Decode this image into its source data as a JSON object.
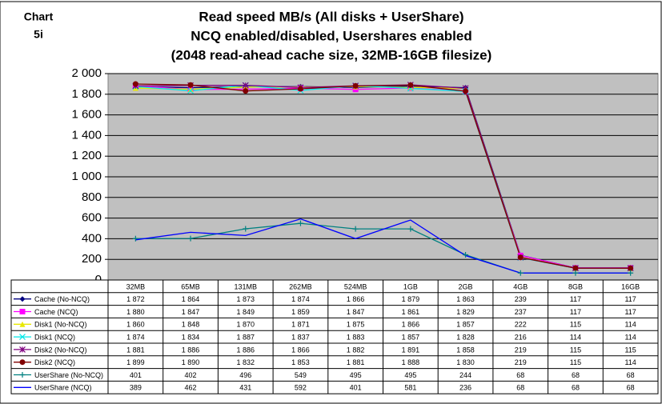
{
  "chart_data": {
    "type": "line",
    "chart_label": [
      "Chart",
      "5i"
    ],
    "title": [
      "Read speed MB/s  (All disks + UserShare)",
      "NCQ enabled/disabled, Usershares enabled",
      "(2048 read-ahead cache size, 32MB-16GB filesize)"
    ],
    "categories": [
      "32MB",
      "65MB",
      "131MB",
      "262MB",
      "524MB",
      "1GB",
      "2GB",
      "4GB",
      "8GB",
      "16GB"
    ],
    "ylim": [
      0,
      2000
    ],
    "yticks": [
      0,
      200,
      400,
      600,
      800,
      {
        "value": 1000,
        "label": "1 000"
      },
      {
        "value": 1200,
        "label": "1 200"
      },
      {
        "value": 1400,
        "label": "1 400"
      },
      {
        "value": 1600,
        "label": "1 600"
      },
      {
        "value": 1800,
        "label": "1 800"
      },
      {
        "value": 2000,
        "label": "2 000"
      }
    ],
    "grid": true,
    "plot_background": "#c0c0c0",
    "series": [
      {
        "name": "Cache (No-NCQ)",
        "color": "#000080",
        "marker": "diamond",
        "values": [
          1872,
          1864,
          1873,
          1874,
          1866,
          1879,
          1863,
          239,
          117,
          117
        ],
        "value_labels": [
          "1 872",
          "1 864",
          "1 873",
          "1 874",
          "1 866",
          "1 879",
          "1 863",
          "239",
          "117",
          "117"
        ]
      },
      {
        "name": "Cache (NCQ)",
        "color": "#ff00ff",
        "marker": "square",
        "values": [
          1880,
          1847,
          1849,
          1859,
          1847,
          1861,
          1829,
          237,
          117,
          117
        ],
        "value_labels": [
          "1 880",
          "1 847",
          "1 849",
          "1 859",
          "1 847",
          "1 861",
          "1 829",
          "237",
          "117",
          "117"
        ]
      },
      {
        "name": "Disk1 (No-NCQ)",
        "color": "#e8e800",
        "marker": "triangle",
        "values": [
          1860,
          1848,
          1870,
          1871,
          1875,
          1866,
          1857,
          222,
          115,
          114
        ],
        "value_labels": [
          "1 860",
          "1 848",
          "1 870",
          "1 871",
          "1 875",
          "1 866",
          "1 857",
          "222",
          "115",
          "114"
        ]
      },
      {
        "name": "Disk1 (NCQ)",
        "color": "#00e8e8",
        "marker": "x",
        "values": [
          1874,
          1834,
          1887,
          1837,
          1883,
          1857,
          1828,
          216,
          114,
          114
        ],
        "value_labels": [
          "1 874",
          "1 834",
          "1 887",
          "1 837",
          "1 883",
          "1 857",
          "1 828",
          "216",
          "114",
          "114"
        ]
      },
      {
        "name": "Disk2 (No-NCQ)",
        "color": "#800080",
        "marker": "star",
        "values": [
          1881,
          1886,
          1886,
          1866,
          1882,
          1891,
          1858,
          219,
          115,
          115
        ],
        "value_labels": [
          "1 881",
          "1 886",
          "1 886",
          "1 866",
          "1 882",
          "1 891",
          "1 858",
          "219",
          "115",
          "115"
        ]
      },
      {
        "name": "Disk2 (NCQ)",
        "color": "#800000",
        "marker": "circle",
        "values": [
          1899,
          1890,
          1832,
          1853,
          1881,
          1888,
          1830,
          219,
          115,
          114
        ],
        "value_labels": [
          "1 899",
          "1 890",
          "1 832",
          "1 853",
          "1 881",
          "1 888",
          "1 830",
          "219",
          "115",
          "114"
        ]
      },
      {
        "name": "UserShare (No-NCQ)",
        "color": "#008080",
        "marker": "plus",
        "values": [
          401,
          402,
          496,
          549,
          495,
          495,
          244,
          68,
          68,
          68
        ]
      },
      {
        "name": "UserShare (NCQ)",
        "color": "#0000ff",
        "marker": "none",
        "values": [
          389,
          462,
          431,
          592,
          401,
          581,
          236,
          68,
          68,
          68
        ]
      }
    ]
  }
}
